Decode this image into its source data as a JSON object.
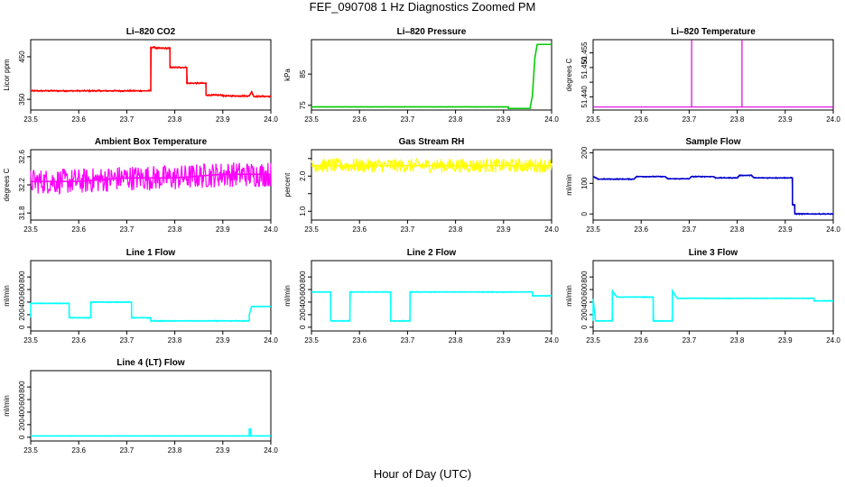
{
  "figure": {
    "title": "FEF_090708  1 Hz Diagnostics Zoomed PM",
    "xlabel": "Hour of Day (UTC)"
  },
  "chart_data": [
    {
      "type": "line",
      "title": "Li–820 CO2",
      "xlabel": "",
      "ylabel": "Licor ppm",
      "xlim": [
        23.5,
        24.0
      ],
      "ylim": [
        325,
        490
      ],
      "xticks": [
        "23.5",
        "23.6",
        "23.7",
        "23.8",
        "23.9",
        "24.0"
      ],
      "yticks": [
        350,
        450
      ],
      "color": "#ff0000",
      "noise": 2,
      "series": [
        {
          "x": [
            23.5,
            23.75,
            23.75,
            23.76,
            23.76,
            23.79,
            23.79,
            23.825,
            23.825,
            23.865,
            23.865,
            23.9,
            23.9,
            23.955,
            23.96,
            23.965,
            23.97,
            24.0
          ],
          "y": [
            370,
            370,
            472,
            472,
            470,
            470,
            425,
            425,
            388,
            388,
            360,
            360,
            358,
            358,
            368,
            356,
            357,
            357
          ]
        }
      ]
    },
    {
      "type": "line",
      "title": "Li–820 Pressure",
      "xlabel": "",
      "ylabel": "kPa",
      "xlim": [
        23.5,
        24.0
      ],
      "ylim": [
        73.5,
        96
      ],
      "xticks": [
        "23.5",
        "23.6",
        "23.7",
        "23.8",
        "23.9",
        "24.0"
      ],
      "yticks": [
        75,
        85
      ],
      "color": "#00cc00",
      "noise": 0.05,
      "series": [
        {
          "x": [
            23.5,
            23.91,
            23.91,
            23.955,
            23.96,
            23.965,
            23.97,
            24.0
          ],
          "y": [
            74.5,
            74.5,
            74.0,
            74.0,
            78,
            90,
            94.5,
            94.5
          ]
        }
      ]
    },
    {
      "type": "line",
      "title": "Li–820 Temperature",
      "xlabel": "",
      "ylabel": "degrees C",
      "xlim": [
        23.5,
        24.0
      ],
      "ylim": [
        51.4355,
        51.4595
      ],
      "xticks": [
        "23.5",
        "23.6",
        "23.7",
        "23.8",
        "23.9",
        "24.0"
      ],
      "yticks": [
        51.44,
        51.445,
        51.45,
        51.455
      ],
      "ytick_labels": [
        "51.440",
        "",
        "51.450",
        "51.455"
      ],
      "color": "#dd00dd",
      "noise": 0,
      "series": [
        {
          "x": [
            23.5,
            23.705,
            23.705,
            23.705,
            23.81,
            23.81,
            23.81,
            23.812,
            24.0
          ],
          "y": [
            51.4365,
            51.4365,
            51.4595,
            51.4365,
            51.4365,
            51.4595,
            51.4365,
            51.4365,
            51.4365
          ]
        }
      ]
    },
    {
      "type": "line",
      "title": "Ambient Box Temperature",
      "xlabel": "",
      "ylabel": "degrees C",
      "xlim": [
        23.5,
        24.0
      ],
      "ylim": [
        31.7,
        32.7
      ],
      "xticks": [
        "23.5",
        "23.6",
        "23.7",
        "23.8",
        "23.9",
        "24.0"
      ],
      "yticks": [
        31.8,
        32.2,
        32.6
      ],
      "color": "#ff00ff",
      "noise": 0.18,
      "series": [
        {
          "x": [
            23.5,
            23.6,
            23.7,
            23.8,
            23.9,
            24.0
          ],
          "y": [
            32.25,
            32.25,
            32.3,
            32.3,
            32.35,
            32.35
          ]
        }
      ]
    },
    {
      "type": "line",
      "title": "Gas Stream RH",
      "xlabel": "",
      "ylabel": "percent",
      "xlim": [
        23.5,
        24.0
      ],
      "ylim": [
        0.75,
        2.75
      ],
      "xticks": [
        "23.5",
        "23.6",
        "23.7",
        "23.8",
        "23.9",
        "24.0"
      ],
      "yticks": [
        1.0,
        1.5,
        2.0,
        2.5
      ],
      "ytick_labels": [
        "1.0",
        "",
        "2.0",
        ""
      ],
      "color": "#ffff00",
      "noise": 0.2,
      "series": [
        {
          "x": [
            23.5,
            24.0
          ],
          "y": [
            2.3,
            2.3
          ]
        }
      ]
    },
    {
      "type": "line",
      "title": "Sample Flow",
      "xlabel": "",
      "ylabel": "ml/min",
      "xlim": [
        23.5,
        24.0
      ],
      "ylim": [
        -20,
        210
      ],
      "xticks": [
        "23.5",
        "23.6",
        "23.7",
        "23.8",
        "23.9",
        "24.0"
      ],
      "yticks": [
        0,
        100,
        200
      ],
      "color": "#0000cc",
      "noise": 2,
      "series": [
        {
          "x": [
            23.5,
            23.51,
            23.56,
            23.585,
            23.59,
            23.65,
            23.655,
            23.7,
            23.705,
            23.75,
            23.755,
            23.8,
            23.805,
            23.83,
            23.835,
            23.915,
            23.915,
            23.92,
            23.92,
            24.0
          ],
          "y": [
            122,
            114,
            114,
            114,
            122,
            122,
            115,
            115,
            122,
            122,
            118,
            118,
            126,
            126,
            118,
            118,
            30,
            30,
            0,
            0
          ]
        }
      ]
    },
    {
      "type": "line",
      "title": "Line 1 Flow",
      "xlabel": "",
      "ylabel": "ml/min",
      "xlim": [
        23.5,
        24.0
      ],
      "ylim": [
        -60,
        1060
      ],
      "xticks": [
        "23.5",
        "23.6",
        "23.7",
        "23.8",
        "23.9",
        "24.0"
      ],
      "yticks": [
        0,
        200,
        400,
        600,
        800
      ],
      "color": "#00ffff",
      "noise": 8,
      "series": [
        {
          "x": [
            23.5,
            23.5,
            23.505,
            23.58,
            23.58,
            23.625,
            23.625,
            23.71,
            23.71,
            23.75,
            23.75,
            23.955,
            23.955,
            23.96,
            24.0
          ],
          "y": [
            150,
            380,
            380,
            380,
            150,
            150,
            400,
            400,
            150,
            150,
            100,
            100,
            200,
            330,
            330
          ]
        }
      ]
    },
    {
      "type": "line",
      "title": "Line 2 Flow",
      "xlabel": "",
      "ylabel": "ml/min",
      "xlim": [
        23.5,
        24.0
      ],
      "ylim": [
        -60,
        1060
      ],
      "xticks": [
        "23.5",
        "23.6",
        "23.7",
        "23.8",
        "23.9",
        "24.0"
      ],
      "yticks": [
        0,
        200,
        400,
        600,
        800
      ],
      "color": "#00ffff",
      "noise": 8,
      "series": [
        {
          "x": [
            23.5,
            23.54,
            23.54,
            23.58,
            23.58,
            23.665,
            23.665,
            23.705,
            23.705,
            23.96,
            23.96,
            24.0
          ],
          "y": [
            560,
            560,
            100,
            100,
            560,
            560,
            100,
            100,
            560,
            560,
            500,
            500
          ]
        }
      ]
    },
    {
      "type": "line",
      "title": "Line 3 Flow",
      "xlabel": "",
      "ylabel": "ml/min",
      "xlim": [
        23.5,
        24.0
      ],
      "ylim": [
        -60,
        1060
      ],
      "xticks": [
        "23.5",
        "23.6",
        "23.7",
        "23.8",
        "23.9",
        "24.0"
      ],
      "yticks": [
        0,
        200,
        400,
        600,
        800
      ],
      "color": "#00ffff",
      "noise": 8,
      "series": [
        {
          "x": [
            23.5,
            23.5,
            23.505,
            23.54,
            23.54,
            23.545,
            23.55,
            23.625,
            23.625,
            23.665,
            23.665,
            23.67,
            23.675,
            23.96,
            23.96,
            24.0
          ],
          "y": [
            100,
            450,
            100,
            100,
            580,
            520,
            480,
            480,
            100,
            100,
            580,
            520,
            460,
            460,
            420,
            420
          ]
        }
      ]
    },
    {
      "type": "line",
      "title": "Line 4 (LT) Flow",
      "xlabel": "",
      "ylabel": "ml/min",
      "xlim": [
        23.5,
        24.0
      ],
      "ylim": [
        -60,
        1060
      ],
      "xticks": [
        "23.5",
        "23.6",
        "23.7",
        "23.8",
        "23.9",
        "24.0"
      ],
      "yticks": [
        0,
        200,
        400,
        600,
        800
      ],
      "color": "#00ffff",
      "noise": 3,
      "series": [
        {
          "x": [
            23.5,
            23.955,
            23.955,
            23.958,
            23.958,
            24.0
          ],
          "y": [
            20,
            20,
            130,
            130,
            20,
            20
          ]
        }
      ]
    }
  ]
}
